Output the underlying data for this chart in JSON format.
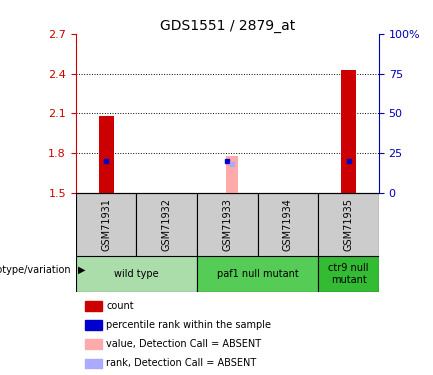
{
  "title": "GDS1551 / 2879_at",
  "samples": [
    "GSM71931",
    "GSM71932",
    "GSM71933",
    "GSM71934",
    "GSM71935"
  ],
  "ylim_left": [
    1.5,
    2.7
  ],
  "ylim_right": [
    0,
    100
  ],
  "yticks_left": [
    1.5,
    1.8,
    2.1,
    2.4,
    2.7
  ],
  "yticks_right": [
    0,
    25,
    50,
    75,
    100
  ],
  "left_tick_labels": [
    "1.5",
    "1.8",
    "2.1",
    "2.4",
    "2.7"
  ],
  "right_tick_labels": [
    "0",
    "25",
    "50",
    "75",
    "100%"
  ],
  "count_values": [
    2.08,
    1.5,
    1.5,
    1.5,
    2.43
  ],
  "count_base": 1.5,
  "rank_values": [
    20.0,
    null,
    20.0,
    null,
    20.0
  ],
  "absent_count_values": [
    null,
    null,
    1.78,
    null,
    null
  ],
  "absent_rank_values": [
    null,
    null,
    18.0,
    null,
    null
  ],
  "bar_width": 0.25,
  "absent_bar_width": 0.2,
  "color_count": "#cc0000",
  "color_rank": "#0000cc",
  "color_absent_count": "#ffaaaa",
  "color_absent_rank": "#aaaaff",
  "genotype_groups": [
    {
      "label": "wild type",
      "samples": [
        0,
        1
      ],
      "color": "#aaddaa"
    },
    {
      "label": "paf1 null mutant",
      "samples": [
        2,
        3
      ],
      "color": "#55cc55"
    },
    {
      "label": "ctr9 null\nmutant",
      "samples": [
        4
      ],
      "color": "#33bb33"
    }
  ],
  "legend_items": [
    {
      "label": "count",
      "color": "#cc0000"
    },
    {
      "label": "percentile rank within the sample",
      "color": "#0000cc"
    },
    {
      "label": "value, Detection Call = ABSENT",
      "color": "#ffaaaa"
    },
    {
      "label": "rank, Detection Call = ABSENT",
      "color": "#aaaaff"
    }
  ],
  "left_axis_color": "#cc0000",
  "right_axis_color": "#0000bb",
  "bg_color": "#ffffff",
  "sample_box_color": "#cccccc",
  "genotype_label": "genotype/variation"
}
